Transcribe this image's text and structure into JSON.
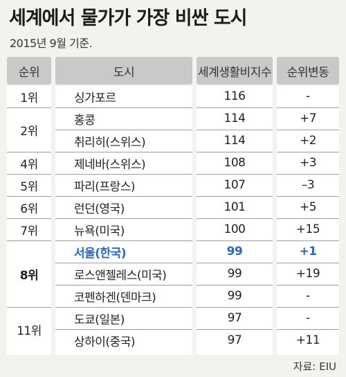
{
  "title": "세계에서 물가가 가장 비싼 도시",
  "subtitle": "2015년 9월 기준.",
  "source": "자료: EIU",
  "chart_data": {
    "type": "table",
    "columns": [
      "순위",
      "도시",
      "세계생활비지수",
      "순위변동"
    ],
    "rows": [
      {
        "rank": "1위",
        "city": "싱가포르",
        "index": "116",
        "change": "-"
      },
      {
        "rank": "2위",
        "city": "홍콩",
        "index": "114",
        "change": "+7"
      },
      {
        "rank": "2위",
        "city": "취리히(스위스)",
        "index": "114",
        "change": "+2"
      },
      {
        "rank": "4위",
        "city": "제네바(스위스)",
        "index": "108",
        "change": "+3"
      },
      {
        "rank": "5위",
        "city": "파리(프랑스)",
        "index": "107",
        "change": "–3"
      },
      {
        "rank": "6위",
        "city": "런던(영국)",
        "index": "101",
        "change": "+5"
      },
      {
        "rank": "7위",
        "city": "뉴욕(미국)",
        "index": "100",
        "change": "+15"
      },
      {
        "rank": "8위",
        "city": "서울(한국)",
        "index": "99",
        "change": "+1"
      },
      {
        "rank": "8위",
        "city": "로스앤젤레스(미국)",
        "index": "99",
        "change": "+19"
      },
      {
        "rank": "8위",
        "city": "코펜하겐(덴마크)",
        "index": "99",
        "change": "-"
      },
      {
        "rank": "11위",
        "city": "도쿄(일본)",
        "index": "97",
        "change": "-"
      },
      {
        "rank": "11위",
        "city": "상하이(중국)",
        "index": "97",
        "change": "+11"
      }
    ],
    "rank_groups": [
      {
        "label": "1위",
        "rows": [
          0
        ]
      },
      {
        "label": "2위",
        "rows": [
          1,
          2
        ]
      },
      {
        "label": "4위",
        "rows": [
          3
        ]
      },
      {
        "label": "5위",
        "rows": [
          4
        ]
      },
      {
        "label": "6위",
        "rows": [
          5
        ]
      },
      {
        "label": "7위",
        "rows": [
          6
        ]
      },
      {
        "label": "8위",
        "rows": [
          7,
          8,
          9
        ]
      },
      {
        "label": "11위",
        "rows": [
          10,
          11
        ]
      }
    ],
    "highlight_row": 7,
    "highlight_color": "#2f66b9"
  }
}
